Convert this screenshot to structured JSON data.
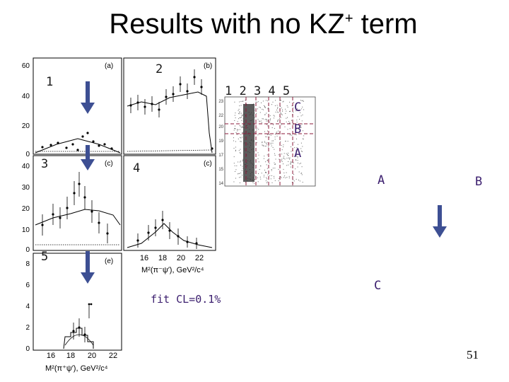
{
  "title": {
    "main": "Results with no KZ",
    "sup": "+",
    "tail": " term"
  },
  "labels": {
    "n1": "1",
    "n2": "2",
    "n3": "3",
    "n4": "4",
    "n5": "5",
    "seq": "1 2 3 4 5",
    "dalitz_c": "C",
    "dalitz_b": "B",
    "dalitz_a": "A",
    "right_a": "A",
    "right_b": "B",
    "right_c": "C",
    "fit": "fit CL=0.1%",
    "page": "51"
  },
  "panels": {
    "a": "(a)",
    "b": "(b)",
    "c1": "(c)",
    "c2": "(c)",
    "e": "(e)",
    "yticks_top": [
      "60",
      "40",
      "20",
      "0"
    ],
    "yticks_mid": [
      "40",
      "30",
      "20",
      "10",
      "0"
    ],
    "yticks_bot": [
      "8",
      "6",
      "4",
      "2",
      "0"
    ],
    "xticks": [
      "16",
      "18",
      "20",
      "22"
    ],
    "xlabel_mid": "M²(π⁻ψ′), GeV²/c⁴",
    "xlabel_bot": "M²(π⁺ψ′), GeV²/c⁴"
  },
  "colors": {
    "arrow": "#3d4f93",
    "dashed": "#8b1a3a",
    "purple": "#3b1e6e"
  },
  "icons": {
    "arrow": "down-arrow-icon"
  }
}
